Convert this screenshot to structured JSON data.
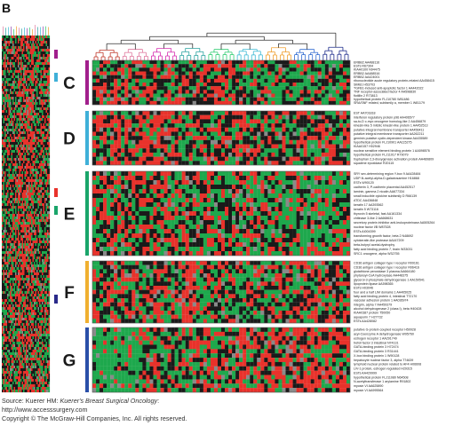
{
  "figure": {
    "panel_letter": "B",
    "clusters": [
      {
        "letter": "C",
        "bar_color": "#a11f8c",
        "genes": [
          "ERBB2 AA488116",
          "ESTs R67304",
          "KIAA0100 N94475",
          "ERBB2 AA488516",
          "ERBB2 AA424001",
          "ribonucleotide acute regulatory protein-related AA458415",
          "SIM81 H53703",
          "TGFB1-induced anti-apoptotic factor 1 AA442022",
          "TNF receptor-associated factor 4 AA598830",
          "flotillin 2 R73813",
          "hypothetical protein FLJ10780 W81486",
          "SRA/SNF related, subfamily a, member 1 W81179"
        ]
      },
      {
        "letter": "D",
        "bar_color": "#3fb0d8",
        "genes": [
          "EST AA701818",
          "interferon regulatory protein p96 AA406577",
          "sa-to-D c-myc oncogene homolog-like 2 AA456879",
          "kinesin-like 5 mitotic kinesin-like protein 1 AA452513",
          "putative integral membrane transporter AA456411",
          "putative integral membrane transporter AA262211",
          "geminin putative cyclin-dependent kinase AA435589",
          "hypothetical protein FLJ10901 AA115275",
          "KIAA0157 H02946",
          "nuclear sensitive element binding protein 1 AA598576",
          "hypothetical protein FLJ11017 R79079",
          "tryptophan 2,3-dioxygenase activation protein AA489809",
          "squalene epoxidase R20115"
        ]
      },
      {
        "letter": "E",
        "bar_color": "#1aa56a",
        "genes": [
          "SRY sex-determining region Y-box 9 AA428484",
          "UDP-N-acetyl-alpha-D-galactosamine H16868",
          "ESTs W90120",
          "cadherin 3, P-cadherin placental AA452517",
          "laminin, gamma 2 nicalin AA677334",
          "small inducible cytokine subfamily D R66139",
          "ATDC AA436848",
          "keratin 17 AA393562",
          "keratin 5 W73116",
          "thyroxin 5 skeletal, fast AA161334",
          "chitinase 3-like 2 AA668631",
          "secretory protein inhibitor anti-leukoproteinase AA505264",
          "nuclear factor I/B W87528",
          "ESTs AI004399",
          "transforming growth factor, beta 2 N48692",
          "cytokeratin-like protease AA447209",
          "beta-butyryl acetal-dystrophy",
          "fatty acid binding protein 7, brain W33031",
          "SRC1 oncogene, alpha W32755"
        ]
      },
      {
        "letter": "F",
        "bar_color": "#f0b030",
        "genes": [
          "CD36 antigen collagen type I receptor R09161",
          "CD36 antigen collagen type I receptor R06416",
          "glutathione peroxidase 3 plasma AA664180",
          "phytanoyl-CoA hydroxylase AA448375",
          "glycerol-3-phosphate dehydrogenase 1 AA150541",
          "lipoprotein lipase AA598365",
          "ESTs H03046",
          "four and a half LIM domains 1 AA405025",
          "fatty acid binding protein 4, intestinal T72170",
          "vascular adhesion protein 1 AA036974",
          "integrin, alpha 7 AA459379",
          "alcohol dehydrogenase 2 (class I), beta H40428",
          "KIAA0387 protein T50050",
          "aquaporin 7 H27732",
          "ESTs AA428082"
        ]
      },
      {
        "letter": "G",
        "bar_color": "#2a4fa8",
        "genes": [
          "putative G-protein coupled receptor H50928",
          "acyl-Coenzyme A dehydrogenase W95760",
          "estrogen receptor 1 AA291749",
          "trefoil factor 3 intestinal N74131",
          "GATA-binding protein 3 H72474",
          "GATA-binding protein 3 R31441",
          "X-box binding protein 1 W90128",
          "hepatocyte nuclear factor 3, alpha T74639",
          "lymphoid nuclear protein related to AF4 H06608",
          "LIV-1 protein, estrogen regulated H29315",
          "ESTs AA429999",
          "hypothetical protein FLJ11080 N64508",
          "N-acetyltransferase 1 arylamine R91802",
          "myosin VI AA625890",
          "myosin VI AA995564"
        ]
      }
    ],
    "heatmap_colors": {
      "up": "#e8322b",
      "down": "#1ea84d",
      "neutral": "#1a1a1a",
      "missing": "#8a8a8a"
    },
    "tree_colors": [
      "#c0392b",
      "#e07a9f",
      "#d62fb0",
      "#2aa3a0",
      "#2ecc71",
      "#3bb9d4",
      "#f0a030",
      "#2f6ad1",
      "#1b2a8a"
    ],
    "left_bar_colors": [
      "#a11f8c",
      "#3fb0d8",
      "#e8322b",
      "#1aa56a",
      "#2a2a8a"
    ]
  },
  "footer": {
    "source_prefix": "Source: Kuerer HM: ",
    "source_title": "Kuerer's Breast Surgical Oncology",
    "source_suffix": ":",
    "url": "http://www.accesssurgery.com",
    "copyright": "Copyright © The McGraw-Hill Companies, Inc. All rights reserved."
  }
}
